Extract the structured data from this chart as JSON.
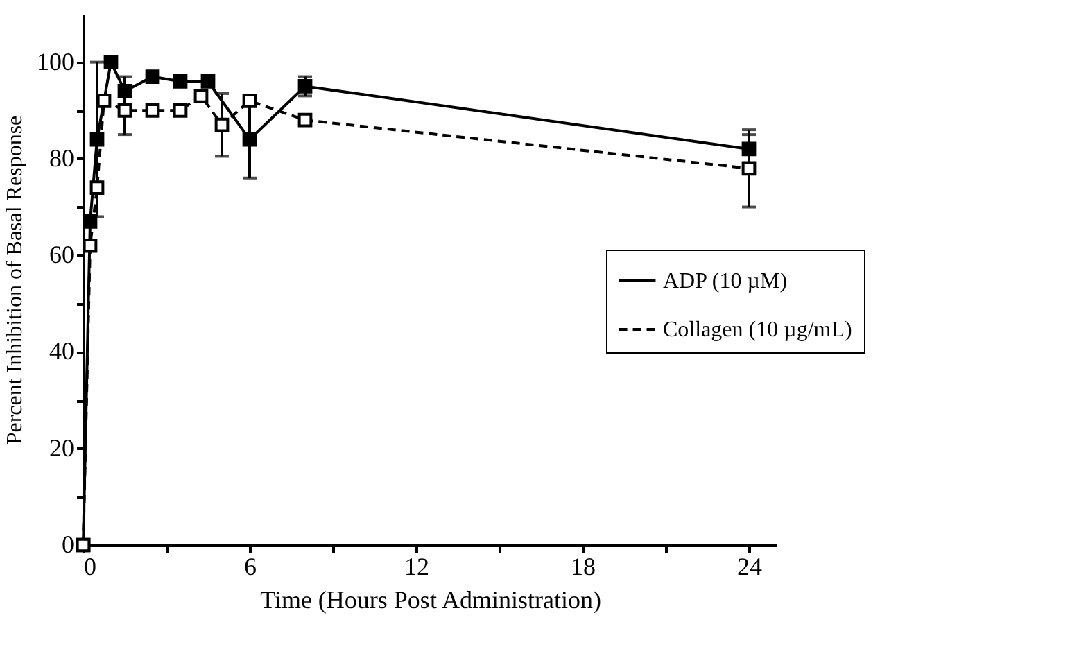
{
  "chart_data": {
    "type": "line",
    "xlabel": "Time (Hours Post Administration)",
    "ylabel": "Percent Inhibition of Basal Response",
    "xlim": [
      0,
      25
    ],
    "xticks": [
      0,
      {
        "value": 3,
        "label": null
      },
      6,
      {
        "value": 9,
        "label": null
      },
      12,
      {
        "value": 15,
        "label": null
      },
      18,
      {
        "value": 21,
        "label": null
      },
      24
    ],
    "ylim": [
      0,
      110
    ],
    "yticks": [
      0,
      {
        "value": 10,
        "label": null
      },
      20,
      {
        "value": 30,
        "label": null
      },
      40,
      {
        "value": 50,
        "label": null
      },
      60,
      {
        "value": 70,
        "label": null
      },
      80,
      {
        "value": 90,
        "label": null
      },
      100
    ],
    "legend": "right",
    "marker": "square",
    "grid": false,
    "series": [
      {
        "name": "ADP (10 µM)",
        "color": "#000000",
        "line_style": "solid",
        "x": [
          0,
          0.25,
          0.5,
          1,
          1.5,
          2.5,
          3.5,
          4.5,
          6,
          8,
          24
        ],
        "values": [
          0,
          67,
          84,
          100,
          94,
          97,
          96,
          96,
          84,
          95,
          82
        ],
        "errors": [
          null,
          null,
          16,
          null,
          3,
          null,
          null,
          null,
          8,
          2,
          3
        ]
      },
      {
        "name": "Collagen (10 µg/mL)",
        "color": "#000000",
        "line_style": "dashed",
        "x": [
          0,
          0.25,
          0.5,
          0.75,
          1.5,
          2.5,
          3.5,
          4.25,
          5,
          6,
          8,
          24
        ],
        "values": [
          0,
          62,
          74,
          92,
          90,
          90,
          90,
          93,
          87,
          92,
          88,
          78
        ],
        "errors": [
          null,
          null,
          null,
          null,
          5,
          null,
          null,
          null,
          6.5,
          null,
          null,
          8
        ]
      }
    ]
  }
}
